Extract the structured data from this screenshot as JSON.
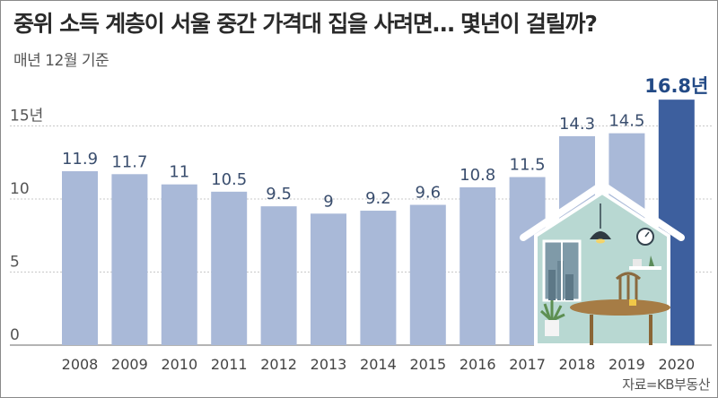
{
  "header": {
    "title": "중위 소득 계층이 서울 중간 가격대 집을 사려면… 몇년이 걸릴까?",
    "subtitle": "매년 12월 기준"
  },
  "footer": {
    "source": "자료=KB부동산"
  },
  "colors": {
    "bar": "#a9b9d8",
    "bar_highlight": "#3d5f9e",
    "grid": "#c8c8c8",
    "house_interior": "#b8d8d2",
    "house_stroke": "#ffffff"
  },
  "chart_data": {
    "type": "bar",
    "categories": [
      "2008",
      "2009",
      "2010",
      "2011",
      "2012",
      "2013",
      "2014",
      "2015",
      "2016",
      "2017",
      "2018",
      "2019",
      "2020"
    ],
    "values": [
      11.9,
      11.7,
      11,
      10.5,
      9.5,
      9,
      9.2,
      9.6,
      10.8,
      11.5,
      14.3,
      14.5,
      16.8
    ],
    "data_labels": [
      "11.9",
      "11.7",
      "11",
      "10.5",
      "9.5",
      "9",
      "9.2",
      "9.6",
      "10.8",
      "11.5",
      "14.3",
      "14.5",
      "16.8년"
    ],
    "highlight_index": 12,
    "y_ticks": [
      {
        "value": 0,
        "label": "0"
      },
      {
        "value": 5,
        "label": "5"
      },
      {
        "value": 10,
        "label": "10"
      },
      {
        "value": 15,
        "label": "15년"
      }
    ],
    "ylim": [
      0,
      18
    ],
    "grid": true,
    "decoration": "house-illustration-icon"
  }
}
